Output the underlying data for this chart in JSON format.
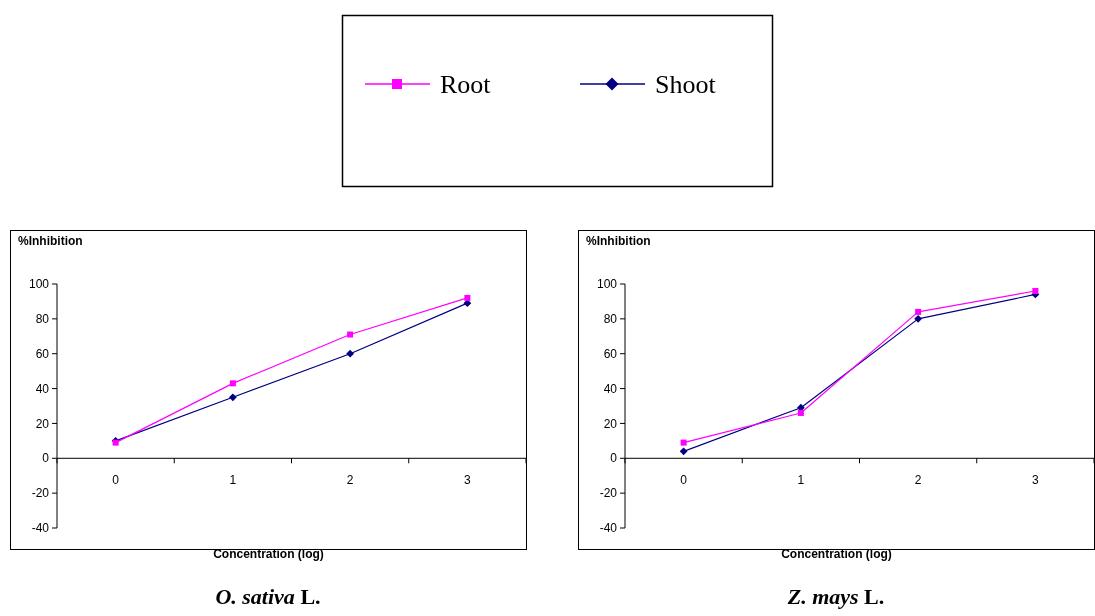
{
  "chart_data": [
    {
      "type": "line",
      "title": "O. sativa L.",
      "xlabel": "Concentration (log)",
      "ylabel": "%Inhibition",
      "categories": [
        "0",
        "1",
        "2",
        "3"
      ],
      "ylim": [
        -40,
        100
      ],
      "yticks": [
        -40,
        -20,
        0,
        20,
        40,
        60,
        80,
        100
      ],
      "legend": "top",
      "grid": false,
      "series": [
        {
          "name": "Root",
          "color": "#ff00ff",
          "marker": "square",
          "values": [
            9,
            43,
            71,
            92
          ]
        },
        {
          "name": "Shoot",
          "color": "#000080",
          "marker": "diamond",
          "values": [
            10,
            35,
            60,
            89
          ]
        }
      ]
    },
    {
      "type": "line",
      "title": "Z. mays L.",
      "xlabel": "Concentration (log)",
      "ylabel": "%Inhibition",
      "categories": [
        "0",
        "1",
        "2",
        "3"
      ],
      "ylim": [
        -40,
        100
      ],
      "yticks": [
        -40,
        -20,
        0,
        20,
        40,
        60,
        80,
        100
      ],
      "legend": "top",
      "grid": false,
      "series": [
        {
          "name": "Root",
          "color": "#ff00ff",
          "marker": "square",
          "values": [
            9,
            26,
            84,
            96
          ]
        },
        {
          "name": "Shoot",
          "color": "#000080",
          "marker": "diamond",
          "values": [
            4,
            29,
            80,
            94
          ]
        }
      ]
    }
  ]
}
